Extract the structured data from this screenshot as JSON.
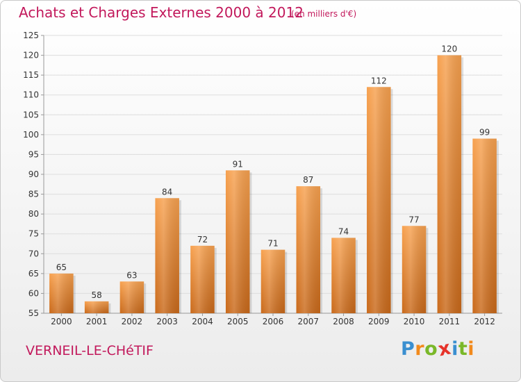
{
  "title": "Achats et Charges Externes 2000 à 2012",
  "subtitle": "(en milliers d'€)",
  "location": "VERNEIL-LE-CHéTIF",
  "logo": {
    "text": "Proxiti",
    "letters": [
      "P",
      "r",
      "o",
      "x",
      "i",
      "t",
      "i"
    ],
    "colors": [
      "#3a8fd0",
      "#f28a1c",
      "#7ab829",
      "#e6332a",
      "#3a8fd0",
      "#7ab829",
      "#f28a1c"
    ]
  },
  "colors": {
    "bar_top": "#f7a14f",
    "bar_bottom": "#c9691a",
    "title": "#c2185b",
    "grid": "#dddddd"
  },
  "chart_data": {
    "type": "bar",
    "title": "Achats et Charges Externes 2000 à 2012",
    "subtitle": "(en milliers d'€)",
    "categories": [
      "2000",
      "2001",
      "2002",
      "2003",
      "2004",
      "2005",
      "2006",
      "2007",
      "2008",
      "2009",
      "2010",
      "2011",
      "2012"
    ],
    "values": [
      65,
      58,
      63,
      84,
      72,
      91,
      71,
      87,
      74,
      112,
      77,
      120,
      99
    ],
    "ylim": [
      55,
      125
    ],
    "yticks": [
      55,
      60,
      65,
      70,
      75,
      80,
      85,
      90,
      95,
      100,
      105,
      110,
      115,
      120,
      125
    ],
    "grid": true,
    "value_labels": true
  }
}
